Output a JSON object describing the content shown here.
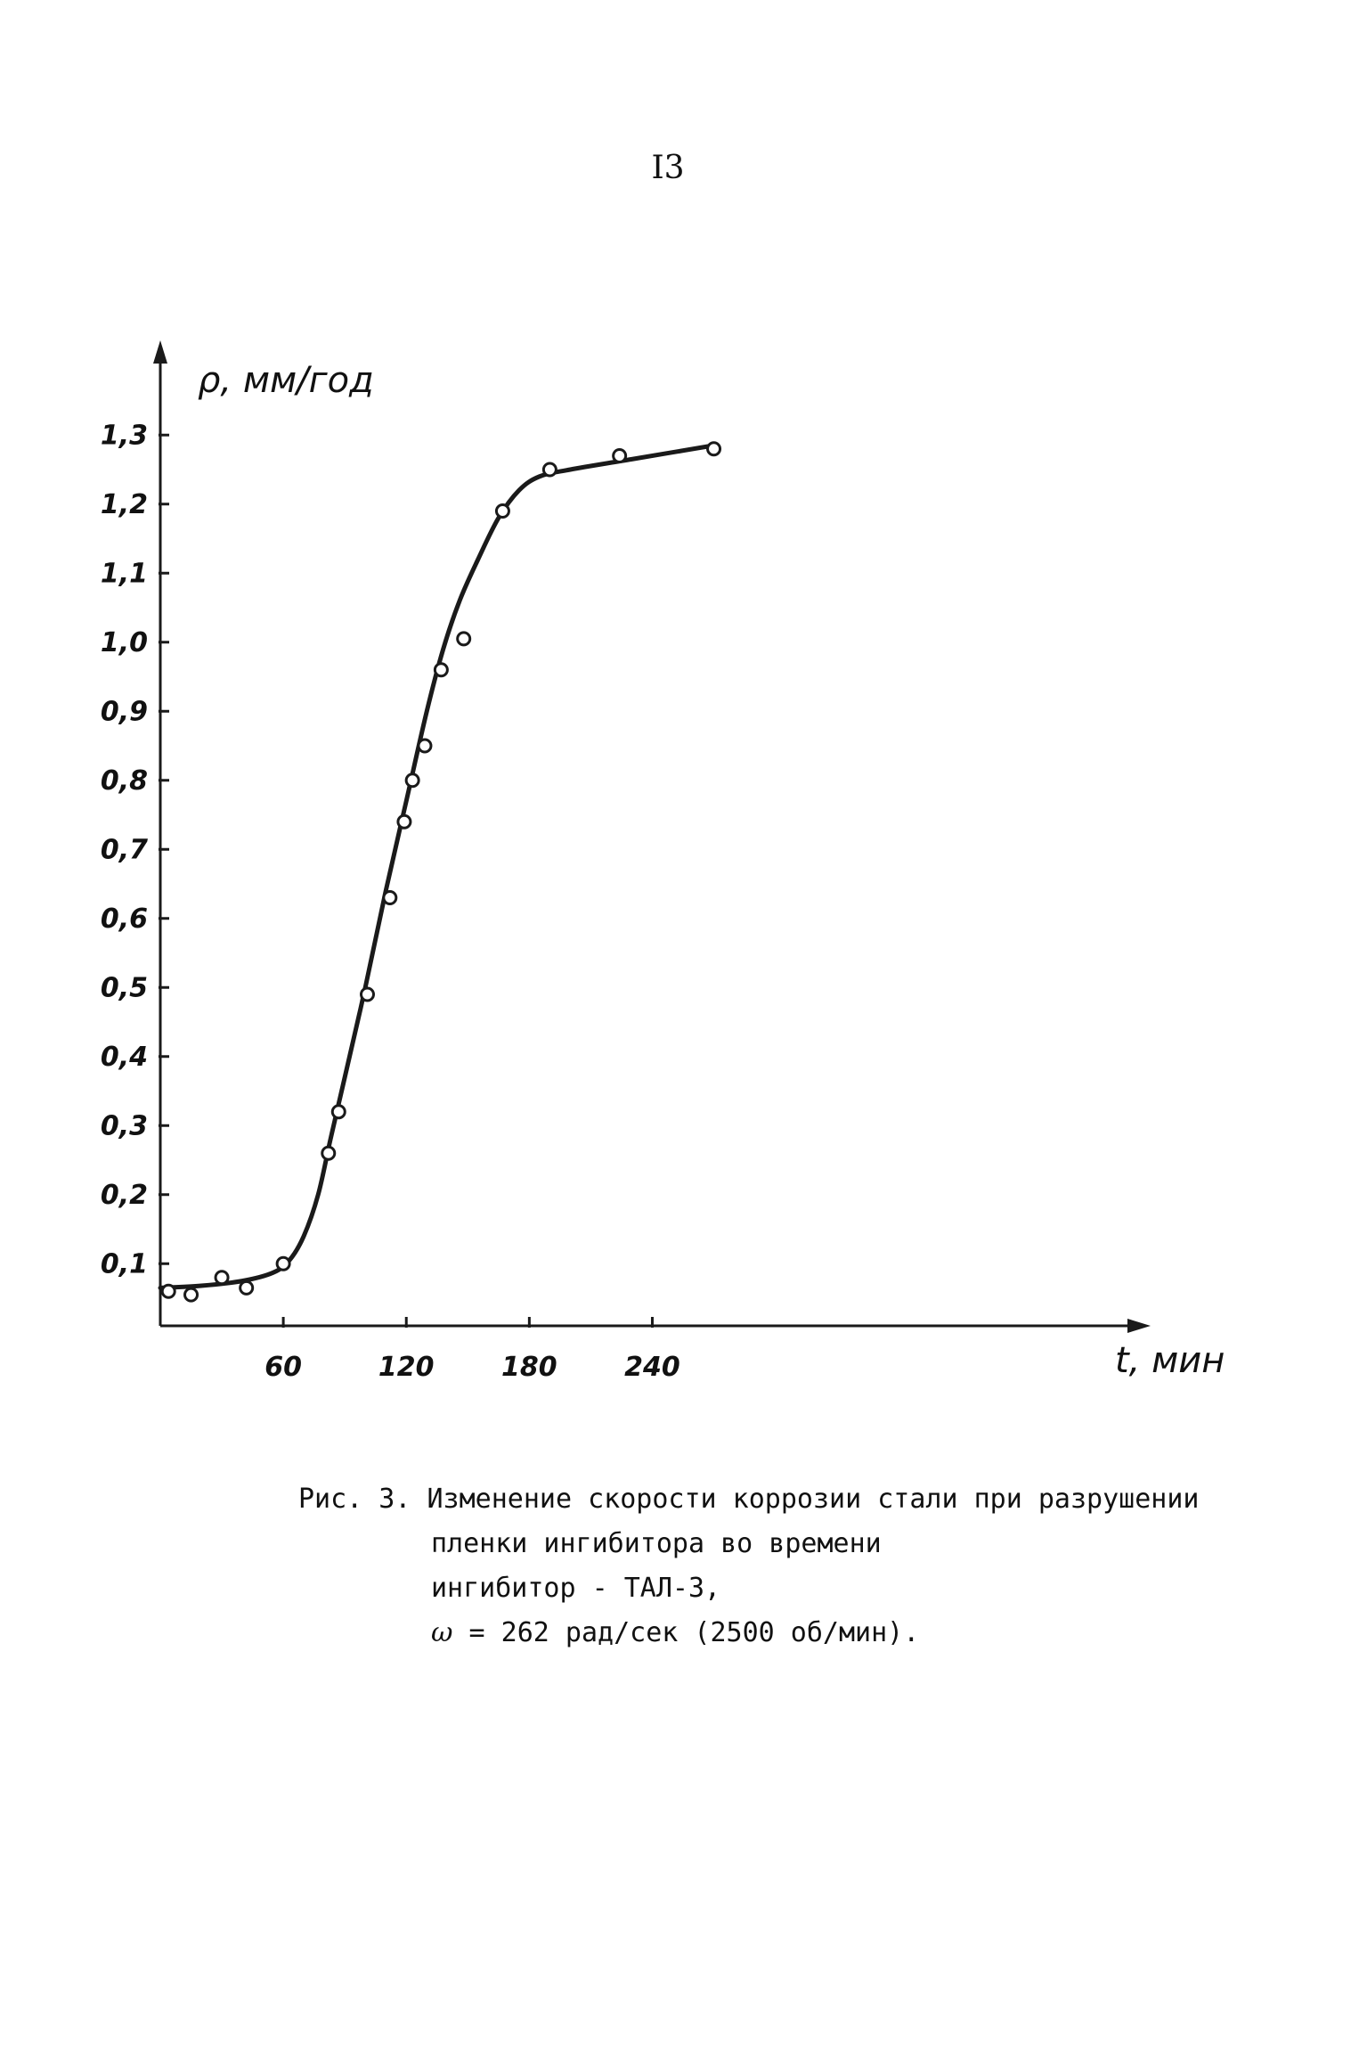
{
  "page": {
    "number": "I3"
  },
  "chart_data": {
    "type": "scatter",
    "ylabel": "ρ, мм/год",
    "xlabel": "t, мин",
    "xlim": [
      0,
      285
    ],
    "ylim": [
      0.01,
      1.38
    ],
    "x_ticks": [
      60,
      120,
      180,
      240
    ],
    "x_tick_labels": [
      "60",
      "120",
      "180",
      "240"
    ],
    "y_ticks": [
      0.1,
      0.2,
      0.3,
      0.4,
      0.5,
      0.6,
      0.7,
      0.8,
      0.9,
      1.0,
      1.1,
      1.2,
      1.3
    ],
    "y_tick_labels": [
      "0,1",
      "0,2",
      "0,3",
      "0,4",
      "0,5",
      "0,6",
      "0,7",
      "0,8",
      "0,9",
      "1,0",
      "1,1",
      "1,2",
      "1,3"
    ],
    "grid": false,
    "series": [
      {
        "points": [
          [
            4,
            0.06
          ],
          [
            15,
            0.055
          ],
          [
            30,
            0.08
          ],
          [
            42,
            0.065
          ],
          [
            60,
            0.1
          ],
          [
            82,
            0.26
          ],
          [
            87,
            0.32
          ],
          [
            101,
            0.49
          ],
          [
            112,
            0.63
          ],
          [
            119,
            0.74
          ],
          [
            123,
            0.8
          ],
          [
            129,
            0.85
          ],
          [
            137,
            0.96
          ],
          [
            148,
            1.005
          ],
          [
            167,
            1.19
          ],
          [
            190,
            1.25
          ],
          [
            224,
            1.27
          ],
          [
            270,
            1.28
          ]
        ]
      }
    ],
    "fit_curve": [
      [
        0,
        0.065
      ],
      [
        20,
        0.068
      ],
      [
        40,
        0.075
      ],
      [
        55,
        0.087
      ],
      [
        63,
        0.105
      ],
      [
        70,
        0.14
      ],
      [
        77,
        0.2
      ],
      [
        83,
        0.28
      ],
      [
        90,
        0.37
      ],
      [
        100,
        0.5
      ],
      [
        110,
        0.64
      ],
      [
        120,
        0.77
      ],
      [
        130,
        0.9
      ],
      [
        138,
        0.99
      ],
      [
        146,
        1.06
      ],
      [
        155,
        1.12
      ],
      [
        165,
        1.18
      ],
      [
        175,
        1.22
      ],
      [
        185,
        1.24
      ],
      [
        200,
        1.25
      ],
      [
        230,
        1.265
      ],
      [
        270,
        1.285
      ]
    ],
    "colors": {
      "ink": "#1a1a1a"
    }
  },
  "caption": {
    "line1": "Рис. 3. Изменение скорости коррозии стали при разрушении",
    "line2": "пленки ингибитора во времени",
    "line3": "ингибитор - ТАЛ-3,",
    "line4_symbol": "ω",
    "line4": "= 262 рад/сек (2500 об/мин)."
  }
}
